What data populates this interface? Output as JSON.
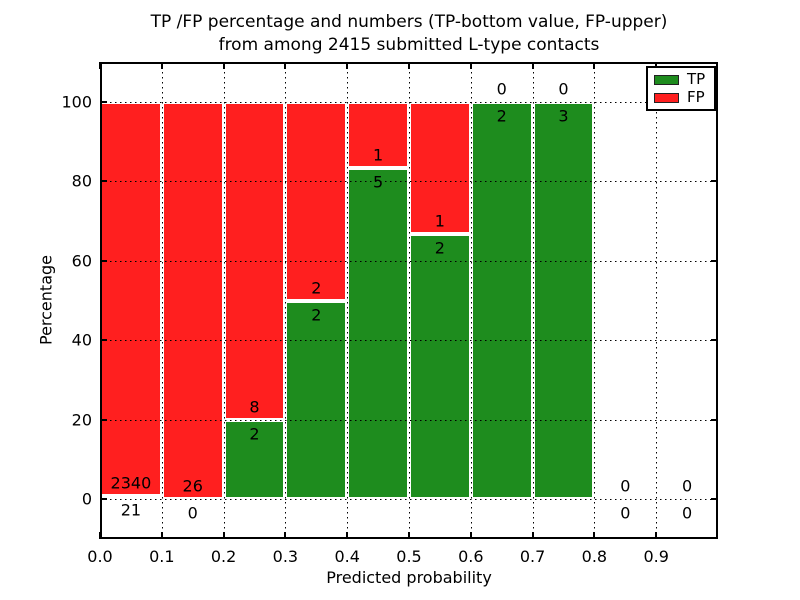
{
  "figure": {
    "title_line1": "TP /FP percentage and numbers (TP-bottom value, FP-upper)",
    "title_line2": "from among 2415 submitted L-type contacts"
  },
  "chart_data": {
    "type": "bar",
    "stacked": true,
    "title": "TP /FP percentage and numbers (TP-bottom value, FP-upper)\nfrom among 2415 submitted L-type contacts",
    "xlabel": "Predicted probability",
    "ylabel": "Percentage",
    "total_contacts": 2415,
    "xlim": [
      0.0,
      1.0
    ],
    "ylim": [
      -10,
      110
    ],
    "xtick_values": [
      0.0,
      0.1,
      0.2,
      0.3,
      0.4,
      0.5,
      0.6,
      0.7,
      0.8,
      0.9
    ],
    "xtick_labels": [
      "0.0",
      "0.1",
      "0.2",
      "0.3",
      "0.4",
      "0.5",
      "0.6",
      "0.7",
      "0.8",
      "0.9"
    ],
    "ytick_values": [
      0,
      20,
      40,
      60,
      80,
      100
    ],
    "ytick_labels": [
      "0",
      "20",
      "40",
      "60",
      "80",
      "100"
    ],
    "grid": {
      "visible": true,
      "linestyle": "dotted",
      "color": "#000000"
    },
    "colors": {
      "tp": "#1e8c1e",
      "fp": "#ff1f1f",
      "bar_edge": "#ffffff"
    },
    "legend": {
      "position": "upper-right",
      "entries": [
        {
          "label": "TP",
          "color": "#1e8c1e"
        },
        {
          "label": "FP",
          "color": "#ff1f1f"
        }
      ]
    },
    "bins": [
      {
        "x_start": 0.0,
        "x_end": 0.1,
        "tp_count": 21,
        "fp_count": 2340,
        "tp_pct": 0.89,
        "fp_pct": 99.11
      },
      {
        "x_start": 0.1,
        "x_end": 0.2,
        "tp_count": 0,
        "fp_count": 26,
        "tp_pct": 0.0,
        "fp_pct": 100.0
      },
      {
        "x_start": 0.2,
        "x_end": 0.3,
        "tp_count": 2,
        "fp_count": 8,
        "tp_pct": 20.0,
        "fp_pct": 80.0
      },
      {
        "x_start": 0.3,
        "x_end": 0.4,
        "tp_count": 2,
        "fp_count": 2,
        "tp_pct": 50.0,
        "fp_pct": 50.0
      },
      {
        "x_start": 0.4,
        "x_end": 0.5,
        "tp_count": 5,
        "fp_count": 1,
        "tp_pct": 83.33,
        "fp_pct": 16.67
      },
      {
        "x_start": 0.5,
        "x_end": 0.6,
        "tp_count": 2,
        "fp_count": 1,
        "tp_pct": 66.67,
        "fp_pct": 33.33
      },
      {
        "x_start": 0.6,
        "x_end": 0.7,
        "tp_count": 2,
        "fp_count": 0,
        "tp_pct": 100.0,
        "fp_pct": 0.0
      },
      {
        "x_start": 0.7,
        "x_end": 0.8,
        "tp_count": 3,
        "fp_count": 0,
        "tp_pct": 100.0,
        "fp_pct": 0.0
      },
      {
        "x_start": 0.8,
        "x_end": 0.9,
        "tp_count": 0,
        "fp_count": 0,
        "tp_pct": 0.0,
        "fp_pct": 0.0
      },
      {
        "x_start": 0.9,
        "x_end": 1.0,
        "tp_count": 0,
        "fp_count": 0,
        "tp_pct": 0.0,
        "fp_pct": 0.0
      }
    ]
  }
}
